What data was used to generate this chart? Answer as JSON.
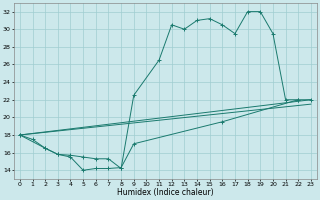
{
  "line1_x": [
    0,
    1,
    2,
    3,
    4,
    5,
    6,
    7,
    8,
    9,
    11,
    12,
    13,
    14,
    15,
    16,
    17,
    18,
    19,
    20,
    21,
    22,
    23
  ],
  "line1_y": [
    18.0,
    17.5,
    16.5,
    15.8,
    15.7,
    15.5,
    15.3,
    15.3,
    14.2,
    22.5,
    26.5,
    30.5,
    30.0,
    31.0,
    31.2,
    30.5,
    29.5,
    32.0,
    32.0,
    29.5,
    22.0,
    22.0,
    22.0
  ],
  "line2_x": [
    0,
    23
  ],
  "line2_y": [
    18.0,
    22.0
  ],
  "line3_x": [
    0,
    23
  ],
  "line3_y": [
    18.0,
    21.5
  ],
  "line4_x": [
    0,
    2,
    3,
    4,
    5,
    6,
    7,
    8,
    9,
    16,
    22
  ],
  "line4_y": [
    18.0,
    16.5,
    15.8,
    15.5,
    14.0,
    14.2,
    14.2,
    14.3,
    17.0,
    19.5,
    22.0
  ],
  "color": "#1a7a6e",
  "bg_color": "#cce8eb",
  "grid_color": "#a0cdd1",
  "xlabel": "Humidex (Indice chaleur)",
  "ylim": [
    13.0,
    33.0
  ],
  "xlim": [
    -0.5,
    23.5
  ],
  "yticks": [
    14,
    16,
    18,
    20,
    22,
    24,
    26,
    28,
    30,
    32
  ],
  "xticks": [
    0,
    1,
    2,
    3,
    4,
    5,
    6,
    7,
    8,
    9,
    10,
    11,
    12,
    13,
    14,
    15,
    16,
    17,
    18,
    19,
    20,
    21,
    22,
    23
  ],
  "xlabel_fontsize": 5.5,
  "tick_fontsize": 4.5
}
